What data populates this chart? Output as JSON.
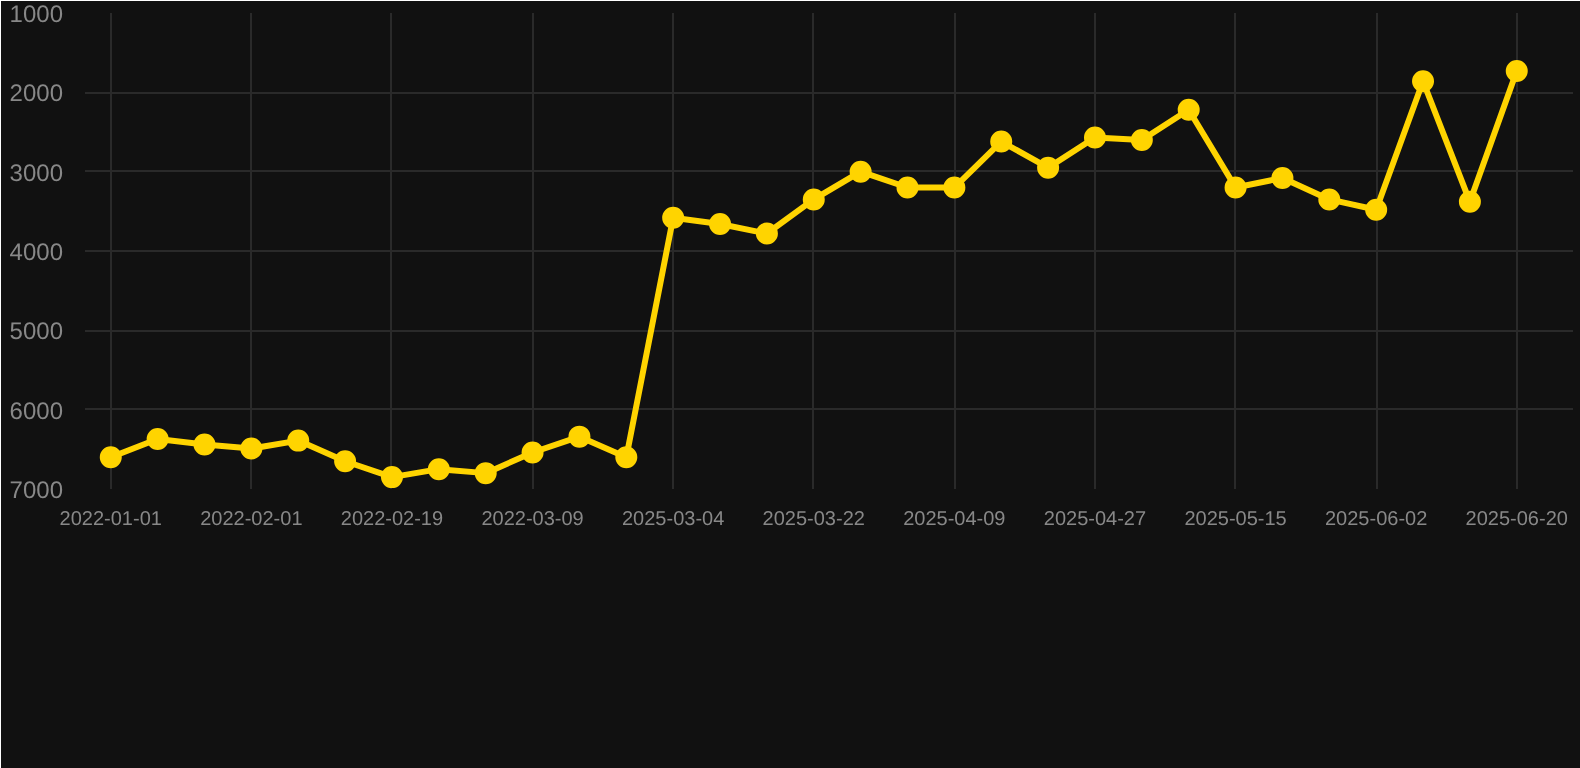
{
  "chart_data": {
    "type": "line",
    "categories": [
      "2022-01-01",
      null,
      null,
      "2022-02-01",
      null,
      null,
      "2022-02-19",
      null,
      null,
      "2022-03-09",
      null,
      null,
      "2025-03-04",
      null,
      null,
      "2025-03-22",
      null,
      null,
      "2025-04-09",
      null,
      null,
      "2025-04-27",
      null,
      null,
      "2025-05-15",
      null,
      null,
      "2025-06-02",
      null,
      null,
      "2025-06-20"
    ],
    "series": [
      {
        "color": "#ffd400",
        "values": [
          6600,
          6370,
          6440,
          6490,
          6390,
          6650,
          6850,
          6750,
          6800,
          6540,
          6340,
          6600,
          3580,
          3660,
          3780,
          3350,
          3000,
          3200,
          3200,
          2620,
          2950,
          2570,
          2600,
          2220,
          3200,
          3080,
          3350,
          3480,
          1860,
          3380,
          1730
        ]
      }
    ],
    "ylim": [
      7000,
      1000
    ],
    "yticks": [
      1000,
      2000,
      3000,
      4000,
      5000,
      6000,
      7000
    ],
    "grid": true,
    "marker": "circle",
    "line_style": "solid"
  }
}
